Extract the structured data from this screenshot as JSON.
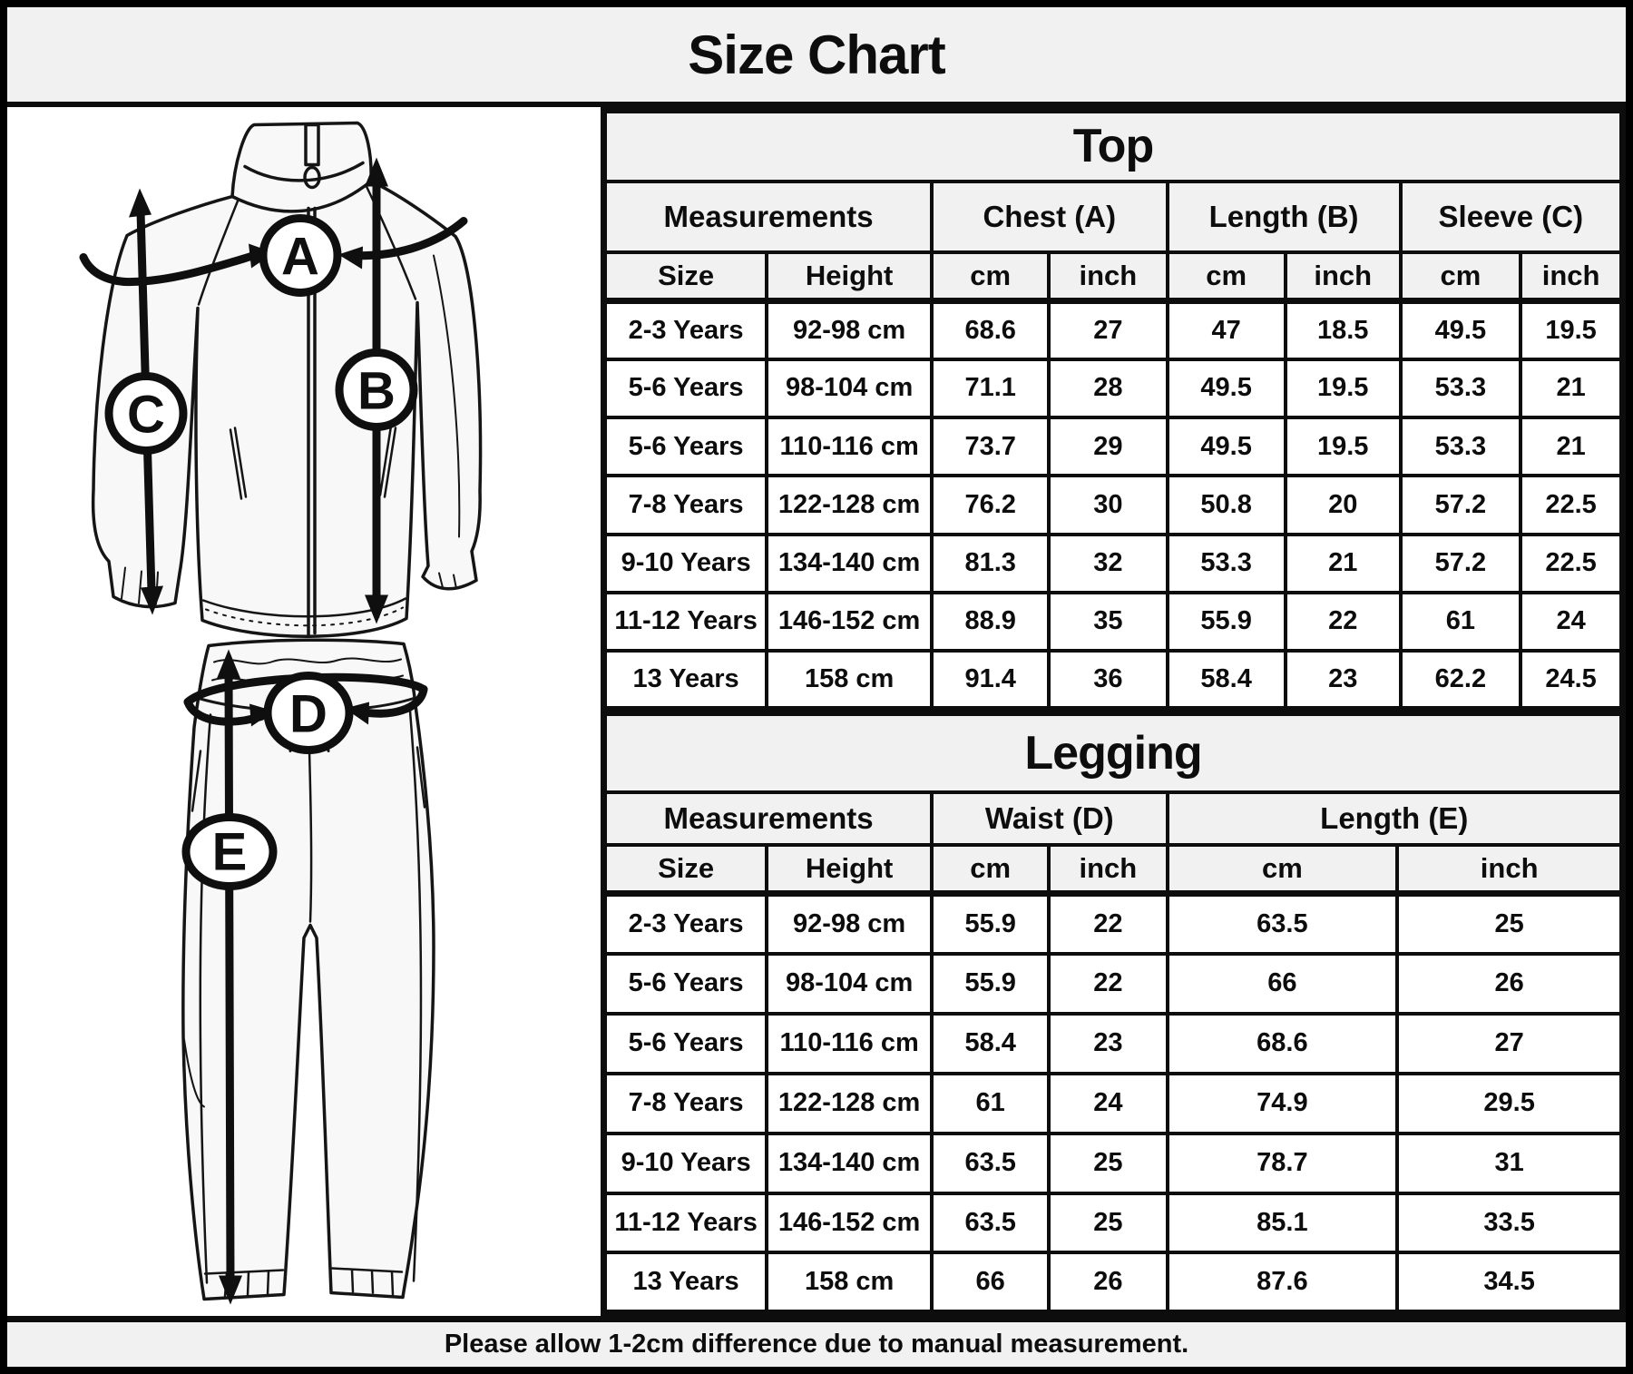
{
  "title": "Size Chart",
  "footer": {
    "note": "Please allow 1-2cm difference due to manual measurement."
  },
  "colors": {
    "band_bg": "#f1f1f1",
    "border": "#0d0d0d",
    "text": "#0d0d0d",
    "cell_bg": "#ffffff"
  },
  "diagram": {
    "description": "Line drawing of a zip-up tracksuit top and jogger leggings with measurement arrows",
    "labels": [
      "A",
      "B",
      "C",
      "D",
      "E"
    ]
  },
  "top_table": {
    "title": "Top",
    "group_headers": [
      "Measurements",
      "Chest (A)",
      "Length (B)",
      "Sleeve (C)"
    ],
    "sub_headers": [
      "Size",
      "Height",
      "cm",
      "inch",
      "cm",
      "inch",
      "cm",
      "inch"
    ],
    "rows": [
      [
        "2-3 Years",
        "92-98 cm",
        "68.6",
        "27",
        "47",
        "18.5",
        "49.5",
        "19.5"
      ],
      [
        "5-6 Years",
        "98-104 cm",
        "71.1",
        "28",
        "49.5",
        "19.5",
        "53.3",
        "21"
      ],
      [
        "5-6 Years",
        "110-116 cm",
        "73.7",
        "29",
        "49.5",
        "19.5",
        "53.3",
        "21"
      ],
      [
        "7-8 Years",
        "122-128 cm",
        "76.2",
        "30",
        "50.8",
        "20",
        "57.2",
        "22.5"
      ],
      [
        "9-10 Years",
        "134-140 cm",
        "81.3",
        "32",
        "53.3",
        "21",
        "57.2",
        "22.5"
      ],
      [
        "11-12 Years",
        "146-152 cm",
        "88.9",
        "35",
        "55.9",
        "22",
        "61",
        "24"
      ],
      [
        "13 Years",
        "158 cm",
        "91.4",
        "36",
        "58.4",
        "23",
        "62.2",
        "24.5"
      ]
    ]
  },
  "legging_table": {
    "title": "Legging",
    "group_headers": [
      "Measurements",
      "Waist (D)",
      "Length (E)"
    ],
    "sub_headers": [
      "Size",
      "Height",
      "cm",
      "inch",
      "cm",
      "inch"
    ],
    "rows": [
      [
        "2-3 Years",
        "92-98 cm",
        "55.9",
        "22",
        "63.5",
        "25"
      ],
      [
        "5-6 Years",
        "98-104 cm",
        "55.9",
        "22",
        "66",
        "26"
      ],
      [
        "5-6 Years",
        "110-116 cm",
        "58.4",
        "23",
        "68.6",
        "27"
      ],
      [
        "7-8 Years",
        "122-128 cm",
        "61",
        "24",
        "74.9",
        "29.5"
      ],
      [
        "9-10 Years",
        "134-140 cm",
        "63.5",
        "25",
        "78.7",
        "31"
      ],
      [
        "11-12 Years",
        "146-152 cm",
        "63.5",
        "25",
        "85.1",
        "33.5"
      ],
      [
        "13 Years",
        "158 cm",
        "66",
        "26",
        "87.6",
        "34.5"
      ]
    ]
  }
}
